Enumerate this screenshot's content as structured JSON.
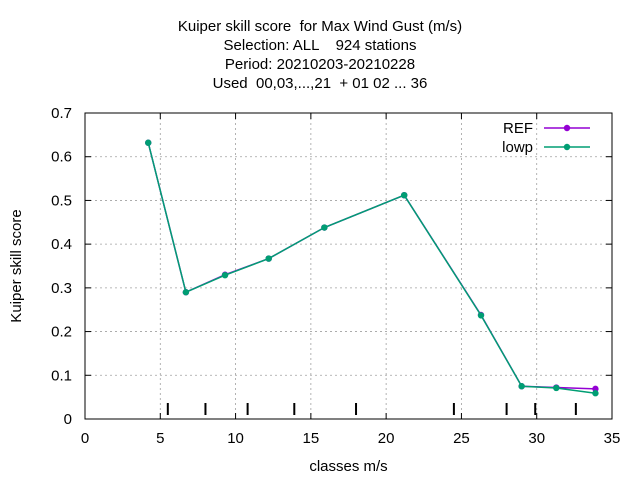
{
  "chart_data": {
    "type": "line",
    "title_lines": [
      "Kuiper skill score  for Max Wind Gust (m/s)",
      "Selection: ALL    924 stations",
      "Period: 20210203-20210228",
      "Used  00,03,...,21  + 01 02 ... 36"
    ],
    "xlabel": "classes m/s",
    "ylabel": "Kuiper skill score",
    "xlim": [
      0,
      35
    ],
    "ylim": [
      0,
      0.7
    ],
    "xticks": [
      0,
      5,
      10,
      15,
      20,
      25,
      30,
      35
    ],
    "yticks": [
      0,
      0.1,
      0.2,
      0.3,
      0.4,
      0.5,
      0.6,
      0.7
    ],
    "xtick_labels": [
      "0",
      "5",
      "10",
      "15",
      "20",
      "25",
      "30",
      "35"
    ],
    "ytick_labels": [
      "0",
      "0.1",
      "0.2",
      "0.3",
      "0.4",
      "0.5",
      "0.6",
      "0.7"
    ],
    "grid": true,
    "legend_position": "top-right",
    "class_boundaries": [
      5.5,
      8.0,
      10.8,
      13.9,
      18.0,
      24.5,
      28.0,
      29.9,
      32.6
    ],
    "series": [
      {
        "name": "REF",
        "color": "#9400d3",
        "x": [
          4.2,
          6.7,
          9.3,
          12.2,
          15.9,
          21.2,
          26.3,
          29.0,
          31.3,
          33.9
        ],
        "y": [
          0.632,
          0.29,
          0.33,
          0.367,
          0.438,
          0.512,
          0.238,
          0.075,
          0.072,
          0.069
        ]
      },
      {
        "name": "lowp",
        "color": "#009e73",
        "x": [
          4.2,
          6.7,
          9.3,
          12.2,
          15.9,
          21.2,
          26.3,
          29.0,
          31.3,
          33.9
        ],
        "y": [
          0.632,
          0.29,
          0.329,
          0.367,
          0.438,
          0.512,
          0.237,
          0.075,
          0.071,
          0.059
        ]
      }
    ]
  }
}
